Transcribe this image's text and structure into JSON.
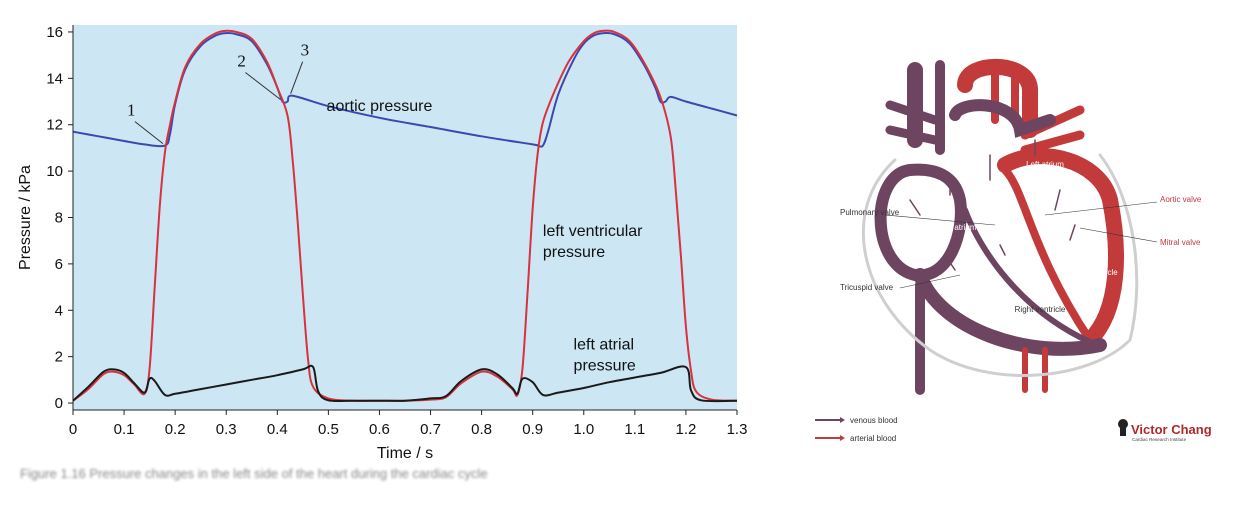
{
  "chart_data": {
    "type": "line",
    "xlabel": "Time / s",
    "ylabel": "Pressure / kPa",
    "xlim": [
      0,
      1.3
    ],
    "ylim": [
      -0.3,
      16.3
    ],
    "xticks": [
      "0",
      "0.1",
      "0.2",
      "0.3",
      "0.4",
      "0.5",
      "0.6",
      "0.7",
      "0.8",
      "0.9",
      "1.0",
      "1.1",
      "1.2",
      "1.3"
    ],
    "yticks": [
      "0",
      "2",
      "4",
      "6",
      "8",
      "10",
      "12",
      "14",
      "16"
    ],
    "grid": false,
    "series": [
      {
        "name": "aortic pressure",
        "color": "#3b48b0",
        "points": [
          [
            0,
            11.7
          ],
          [
            0.05,
            11.5
          ],
          [
            0.1,
            11.3
          ],
          [
            0.14,
            11.15
          ],
          [
            0.18,
            11.1
          ],
          [
            0.19,
            11.6
          ],
          [
            0.2,
            12.9
          ],
          [
            0.22,
            14.4
          ],
          [
            0.25,
            15.4
          ],
          [
            0.28,
            15.85
          ],
          [
            0.3,
            15.95
          ],
          [
            0.32,
            15.9
          ],
          [
            0.35,
            15.6
          ],
          [
            0.38,
            14.6
          ],
          [
            0.4,
            13.6
          ],
          [
            0.41,
            13.0
          ],
          [
            0.42,
            13.0
          ],
          [
            0.43,
            13.25
          ],
          [
            0.5,
            12.8
          ],
          [
            0.6,
            12.3
          ],
          [
            0.7,
            11.9
          ],
          [
            0.8,
            11.5
          ],
          [
            0.9,
            11.15
          ],
          [
            0.91,
            11.1
          ],
          [
            0.92,
            11.1
          ],
          [
            0.93,
            11.7
          ],
          [
            0.95,
            13.3
          ],
          [
            0.98,
            14.8
          ],
          [
            1.0,
            15.5
          ],
          [
            1.02,
            15.85
          ],
          [
            1.04,
            15.95
          ],
          [
            1.06,
            15.9
          ],
          [
            1.09,
            15.5
          ],
          [
            1.12,
            14.5
          ],
          [
            1.14,
            13.6
          ],
          [
            1.15,
            13.0
          ],
          [
            1.16,
            13.0
          ],
          [
            1.17,
            13.2
          ],
          [
            1.2,
            13.0
          ],
          [
            1.25,
            12.7
          ],
          [
            1.3,
            12.4
          ]
        ]
      },
      {
        "name": "left ventricular pressure",
        "color": "#d8323c",
        "points": [
          [
            0,
            0.1
          ],
          [
            0.03,
            0.6
          ],
          [
            0.06,
            1.25
          ],
          [
            0.08,
            1.35
          ],
          [
            0.1,
            1.2
          ],
          [
            0.12,
            0.8
          ],
          [
            0.14,
            0.4
          ],
          [
            0.15,
            1.5
          ],
          [
            0.16,
            5.0
          ],
          [
            0.17,
            8.5
          ],
          [
            0.18,
            10.8
          ],
          [
            0.19,
            12.0
          ],
          [
            0.2,
            13.0
          ],
          [
            0.22,
            14.5
          ],
          [
            0.25,
            15.5
          ],
          [
            0.28,
            15.95
          ],
          [
            0.3,
            16.05
          ],
          [
            0.32,
            16.0
          ],
          [
            0.35,
            15.7
          ],
          [
            0.38,
            14.7
          ],
          [
            0.4,
            13.6
          ],
          [
            0.42,
            12.4
          ],
          [
            0.43,
            10.5
          ],
          [
            0.44,
            7.8
          ],
          [
            0.45,
            4.7
          ],
          [
            0.46,
            1.9
          ],
          [
            0.47,
            0.7
          ],
          [
            0.5,
            0.2
          ],
          [
            0.55,
            0.1
          ],
          [
            0.6,
            0.1
          ],
          [
            0.65,
            0.1
          ],
          [
            0.7,
            0.15
          ],
          [
            0.73,
            0.25
          ],
          [
            0.76,
            0.85
          ],
          [
            0.8,
            1.35
          ],
          [
            0.83,
            1.15
          ],
          [
            0.86,
            0.6
          ],
          [
            0.87,
            0.35
          ],
          [
            0.88,
            1.5
          ],
          [
            0.89,
            4.8
          ],
          [
            0.9,
            8.4
          ],
          [
            0.91,
            10.8
          ],
          [
            0.92,
            12.1
          ],
          [
            0.94,
            13.3
          ],
          [
            0.97,
            14.7
          ],
          [
            1.0,
            15.6
          ],
          [
            1.02,
            15.95
          ],
          [
            1.04,
            16.05
          ],
          [
            1.06,
            16.0
          ],
          [
            1.09,
            15.6
          ],
          [
            1.12,
            14.6
          ],
          [
            1.15,
            13.2
          ],
          [
            1.17,
            11.5
          ],
          [
            1.18,
            9.2
          ],
          [
            1.19,
            6.4
          ],
          [
            1.2,
            3.3
          ],
          [
            1.21,
            1.4
          ],
          [
            1.22,
            0.5
          ],
          [
            1.25,
            0.15
          ],
          [
            1.3,
            0.1
          ]
        ]
      },
      {
        "name": "left atrial pressure",
        "color": "#1a1a1a",
        "points": [
          [
            0,
            0.1
          ],
          [
            0.03,
            0.7
          ],
          [
            0.06,
            1.35
          ],
          [
            0.08,
            1.45
          ],
          [
            0.1,
            1.3
          ],
          [
            0.12,
            0.85
          ],
          [
            0.14,
            0.45
          ],
          [
            0.15,
            1.05
          ],
          [
            0.16,
            0.95
          ],
          [
            0.18,
            0.35
          ],
          [
            0.2,
            0.4
          ],
          [
            0.25,
            0.6
          ],
          [
            0.3,
            0.8
          ],
          [
            0.35,
            1.0
          ],
          [
            0.4,
            1.2
          ],
          [
            0.45,
            1.45
          ],
          [
            0.47,
            1.55
          ],
          [
            0.48,
            0.5
          ],
          [
            0.5,
            0.12
          ],
          [
            0.55,
            0.1
          ],
          [
            0.6,
            0.1
          ],
          [
            0.65,
            0.1
          ],
          [
            0.7,
            0.2
          ],
          [
            0.73,
            0.3
          ],
          [
            0.76,
            0.95
          ],
          [
            0.8,
            1.45
          ],
          [
            0.83,
            1.25
          ],
          [
            0.86,
            0.65
          ],
          [
            0.87,
            0.4
          ],
          [
            0.88,
            1.05
          ],
          [
            0.9,
            0.9
          ],
          [
            0.92,
            0.35
          ],
          [
            0.95,
            0.45
          ],
          [
            1.0,
            0.65
          ],
          [
            1.05,
            0.9
          ],
          [
            1.1,
            1.1
          ],
          [
            1.15,
            1.3
          ],
          [
            1.2,
            1.55
          ],
          [
            1.21,
            0.55
          ],
          [
            1.23,
            0.12
          ],
          [
            1.3,
            0.1
          ]
        ]
      }
    ],
    "annotations": [
      {
        "text": "aortic pressure",
        "x": 0.6,
        "y": 12.6
      },
      {
        "text": "left ventricular pressure",
        "line1": "left ventricular",
        "line2": "pressure",
        "x": 0.92,
        "y": 7.2
      },
      {
        "text": "left atrial pressure",
        "line1": "left atrial",
        "line2": "pressure",
        "x": 0.98,
        "y": 2.3
      }
    ],
    "markers": [
      {
        "label": "1",
        "x": 0.18,
        "y": 11.1
      },
      {
        "label": "2",
        "x": 0.41,
        "y": 13.0
      },
      {
        "label": "3",
        "x": 0.43,
        "y": 13.25
      }
    ]
  },
  "heart_diagram": {
    "labels": {
      "left_atrium": "Left atrium",
      "right_atrium": "Right atrium",
      "pulmonary_valve": "Pulmonary valve",
      "tricuspid_valve": "Tricuspid valve",
      "aortic_valve": "Aortic valve",
      "mitral_valve": "Mitral valve",
      "left_ventricle": "Left ventricle",
      "right_ventricle": "Right ventricle"
    },
    "legend": [
      {
        "label": "venous blood",
        "color": "#6e4560"
      },
      {
        "label": "arterial blood",
        "color": "#c23a3a"
      }
    ],
    "logo": {
      "name": "Victor Chang",
      "subtitle": "Cardiac Research Institute"
    }
  },
  "caption": "Figure 1.16  Pressure changes in the left side of the heart during the cardiac cycle"
}
